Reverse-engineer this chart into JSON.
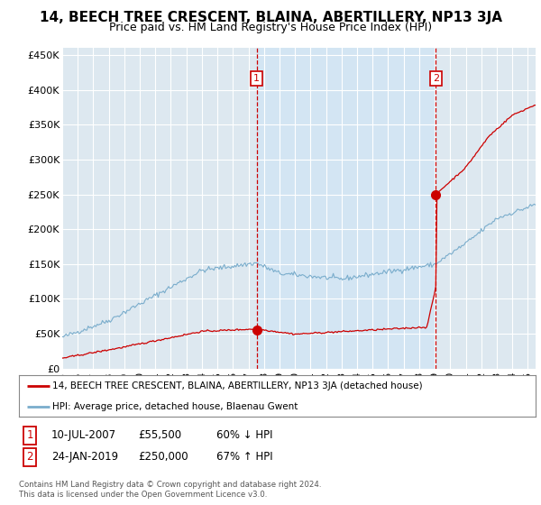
{
  "title": "14, BEECH TREE CRESCENT, BLAINA, ABERTILLERY, NP13 3JA",
  "subtitle": "Price paid vs. HM Land Registry's House Price Index (HPI)",
  "ylabel_ticks": [
    "£0",
    "£50K",
    "£100K",
    "£150K",
    "£200K",
    "£250K",
    "£300K",
    "£350K",
    "£400K",
    "£450K"
  ],
  "ytick_values": [
    0,
    50000,
    100000,
    150000,
    200000,
    250000,
    300000,
    350000,
    400000,
    450000
  ],
  "ylim": [
    0,
    460000
  ],
  "xlim_start": 1995.0,
  "xlim_end": 2025.5,
  "sale1_x": 2007.52,
  "sale1_y": 55500,
  "sale2_x": 2019.07,
  "sale2_y": 250000,
  "legend_line1": "14, BEECH TREE CRESCENT, BLAINA, ABERTILLERY, NP13 3JA (detached house)",
  "legend_line2": "HPI: Average price, detached house, Blaenau Gwent",
  "footer": "Contains HM Land Registry data © Crown copyright and database right 2024.\nThis data is licensed under the Open Government Licence v3.0.",
  "line_color_red": "#cc0000",
  "line_color_blue": "#7aadcc",
  "shade_color": "#ddeeff",
  "bg_color": "#dde8f0",
  "grid_color": "#ffffff",
  "title_fontsize": 11,
  "subtitle_fontsize": 9,
  "tick_fontsize": 8
}
